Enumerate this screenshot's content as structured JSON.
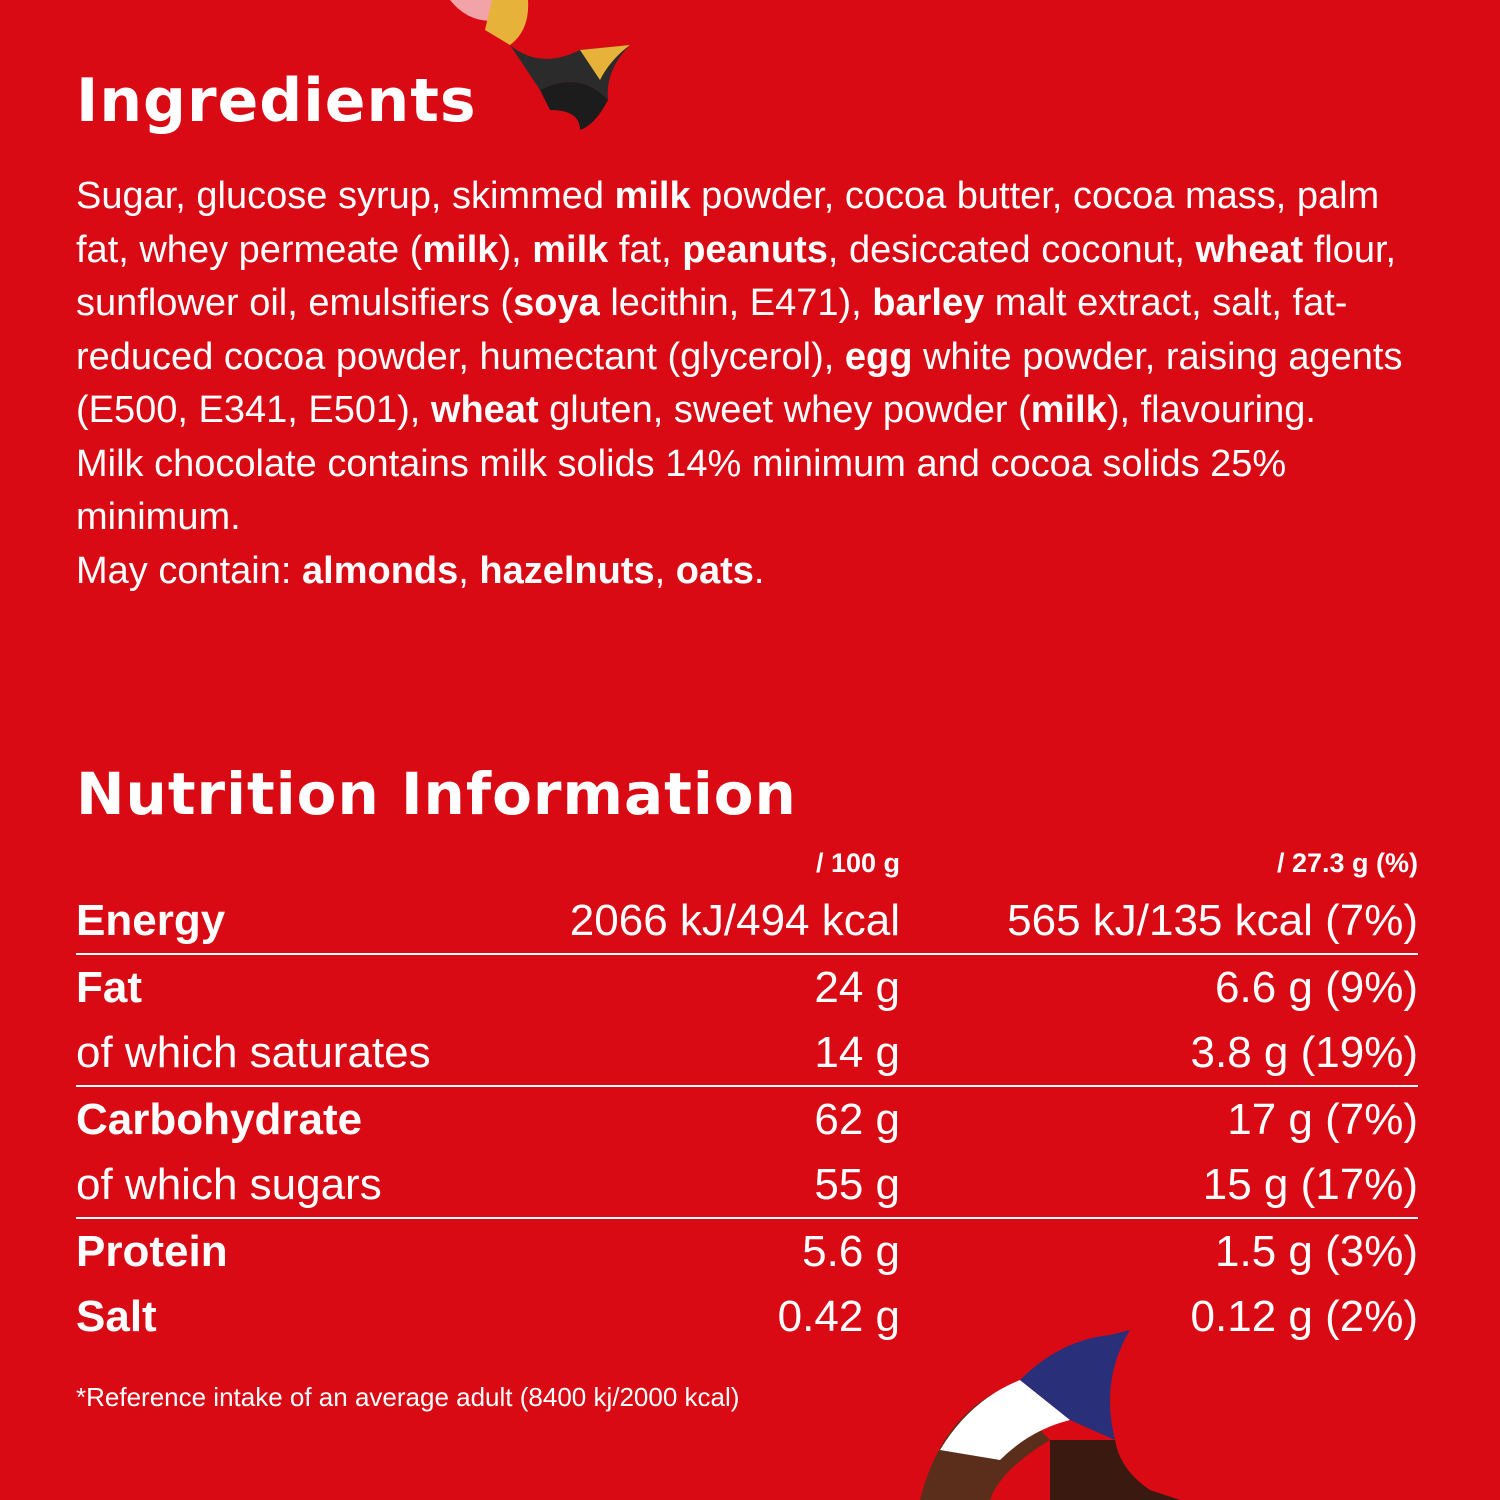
{
  "ingredients": {
    "title": "Ingredients",
    "paragraphs": [
      [
        {
          "t": "Sugar, glucose syrup, skimmed "
        },
        {
          "t": "milk",
          "b": true
        },
        {
          "t": " powder, cocoa butter, cocoa mass, palm fat, whey permeate ("
        },
        {
          "t": "milk",
          "b": true
        },
        {
          "t": "), "
        },
        {
          "t": "milk",
          "b": true
        },
        {
          "t": " fat, "
        },
        {
          "t": "peanuts",
          "b": true
        },
        {
          "t": ", desiccated coconut, "
        },
        {
          "t": "wheat",
          "b": true
        },
        {
          "t": " flour, sunflower oil, emulsifiers ("
        },
        {
          "t": "soya",
          "b": true
        },
        {
          "t": " lecithin, E471), "
        },
        {
          "t": "barley",
          "b": true
        },
        {
          "t": " malt extract, salt, fat-reduced cocoa powder, humectant (glycerol), "
        },
        {
          "t": "egg",
          "b": true
        },
        {
          "t": " white powder, raising agents (E500, E341, E501), "
        },
        {
          "t": "wheat",
          "b": true
        },
        {
          "t": " gluten, sweet whey powder ("
        },
        {
          "t": "milk",
          "b": true
        },
        {
          "t": "), flavouring."
        }
      ],
      [
        {
          "t": "Milk chocolate contains milk solids 14% minimum and cocoa solids 25% minimum."
        }
      ],
      [
        {
          "t": "May contain: "
        },
        {
          "t": "almonds",
          "b": true
        },
        {
          "t": ", "
        },
        {
          "t": "hazelnuts",
          "b": true
        },
        {
          "t": ", "
        },
        {
          "t": "oats",
          "b": true
        },
        {
          "t": "."
        }
      ]
    ]
  },
  "nutrition": {
    "title": "Nutrition Information",
    "col_per_100": "/ 100 g",
    "col_per_portion": "/ 27.3 g (%)",
    "rows": [
      {
        "label": "Energy",
        "bold": true,
        "per100": "2066 kJ/494 kcal",
        "portion": "565 kJ/135 kcal (7%)",
        "divider": true
      },
      {
        "label": "Fat",
        "bold": true,
        "per100": "24 g",
        "portion": "6.6 g (9%)",
        "divider": false
      },
      {
        "label": "of which saturates",
        "bold": false,
        "per100": "14 g",
        "portion": "3.8 g (19%)",
        "divider": true
      },
      {
        "label": "Carbohydrate",
        "bold": true,
        "per100": "62 g",
        "portion": "17 g (7%)",
        "divider": false
      },
      {
        "label": "of which sugars",
        "bold": false,
        "per100": "55 g",
        "portion": "15 g (17%)",
        "divider": true
      },
      {
        "label": "Protein",
        "bold": true,
        "per100": "5.6 g",
        "portion": "1.5 g (3%)",
        "divider": false
      },
      {
        "label": "Salt",
        "bold": true,
        "per100": "0.42 g",
        "portion": "0.12 g (2%)",
        "divider": false
      }
    ],
    "footnote": "*Reference intake of an average adult (8400 kj/2000 kcal)"
  },
  "colors": {
    "background": "#d90a14",
    "text": "#ffffff"
  }
}
